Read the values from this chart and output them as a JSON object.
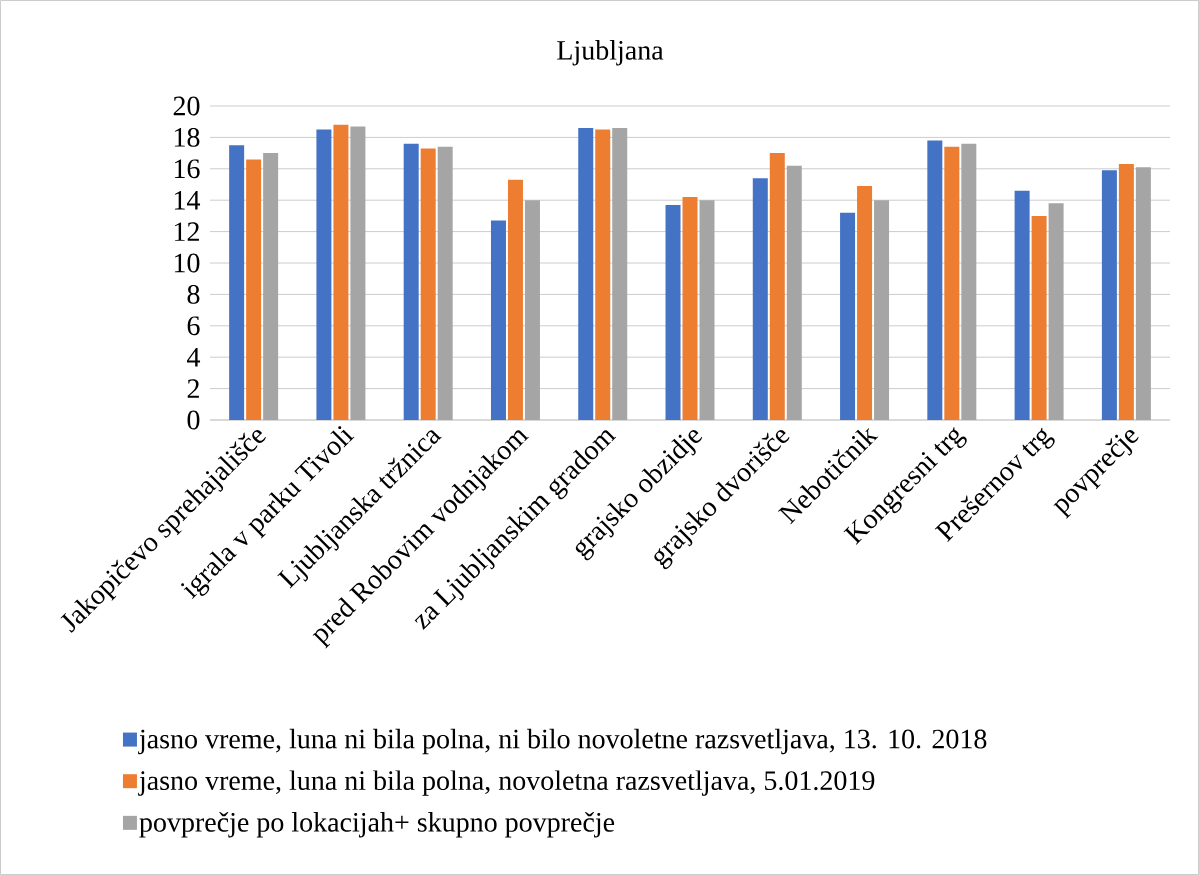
{
  "chart_data": {
    "type": "bar",
    "title": "Ljubljana",
    "categories": [
      "Jakopičevo sprehajališče",
      "igrala v parku Tivoli",
      "Ljubljanska tržnica",
      "pred Robovim vodnjakom",
      "za Ljubljanskim gradom",
      "grajsko obzidje",
      "grajsko dvorišče",
      "Nebotičnik",
      "Kongresni trg",
      "Prešernov trg",
      "povprečje"
    ],
    "series": [
      {
        "name": "jasno vreme, luna ni bila polna, ni bilo novoletne razsvetljava, 13. 10. 2018",
        "color": "#4472c4",
        "values": [
          17.5,
          18.5,
          17.6,
          12.7,
          18.6,
          13.7,
          15.4,
          13.2,
          17.8,
          14.6,
          15.9
        ]
      },
      {
        "name": "jasno vreme, luna ni bila polna, novoletna razsvetljava, 5.01.2019",
        "color": "#ed7d31",
        "values": [
          16.6,
          18.8,
          17.3,
          15.3,
          18.5,
          14.2,
          17.0,
          14.9,
          17.4,
          13.0,
          16.3
        ]
      },
      {
        "name": "povprečje po lokacijah+ skupno povprečje",
        "color": "#a5a5a5",
        "values": [
          17.0,
          18.7,
          17.4,
          14.0,
          18.6,
          14.0,
          16.2,
          14.0,
          17.6,
          13.8,
          16.1
        ]
      }
    ],
    "ylim": [
      0,
      20
    ],
    "yticks": [
      0,
      2,
      4,
      6,
      8,
      10,
      12,
      14,
      16,
      18,
      20
    ],
    "grid": "y",
    "legend": "bottom"
  }
}
